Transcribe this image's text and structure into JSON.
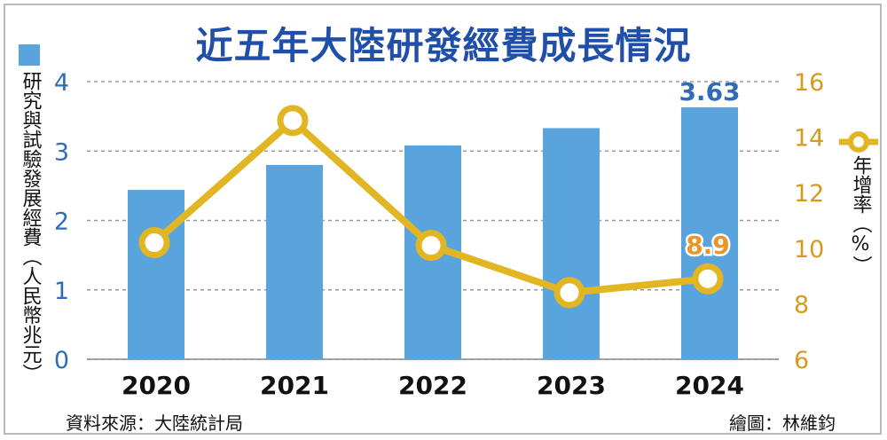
{
  "title": "近五年大陸研發經費成長情況",
  "left_axis_label": "研究與試驗發展經費（人民幣兆元）",
  "right_legend_label": "年增率（%）",
  "source": "資料來源：大陸統計局",
  "credit": "繪圖：林維鈞",
  "colors": {
    "bar": "#5aa4de",
    "line": "#e2b623",
    "title": "#1f4fa8",
    "right_axis": "#d89a1e",
    "left_axis": "#2f6cb8"
  },
  "chart_data": {
    "type": "bar+line",
    "categories": [
      "2020",
      "2021",
      "2022",
      "2023",
      "2024"
    ],
    "series": [
      {
        "values": [
          2.44,
          2.8,
          3.08,
          3.33,
          3.63
        ],
        "axis": "left",
        "kind": "bar"
      },
      {
        "values": [
          10.2,
          14.6,
          10.1,
          8.4,
          8.9
        ],
        "axis": "right",
        "kind": "line"
      }
    ],
    "data_labels": {
      "bar_last": "3.63",
      "line_last": "8.9"
    },
    "y_left": {
      "min": 0,
      "max": 4,
      "ticks": [
        "0",
        "1",
        "2",
        "3",
        "4"
      ]
    },
    "y_right": {
      "min": 6,
      "max": 16,
      "ticks": [
        "6",
        "8",
        "10",
        "12",
        "14",
        "16"
      ]
    },
    "grid": true,
    "legend": "left and right vertical labels"
  }
}
